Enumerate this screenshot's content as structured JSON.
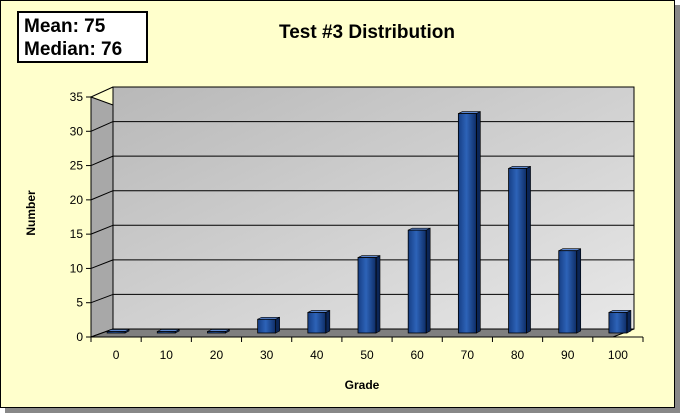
{
  "stats": {
    "mean": "Mean: 75",
    "median": "Median: 76"
  },
  "colors": {
    "background": "#ffffcc",
    "bar": "#1f4e9c",
    "wall": "#c9c9c9",
    "floor": "#8c8c8c"
  },
  "chart_data": {
    "type": "bar",
    "title": "Test #3 Distribution",
    "xlabel": "Grade",
    "ylabel": "Number",
    "categories": [
      "0",
      "10",
      "20",
      "30",
      "40",
      "50",
      "60",
      "70",
      "80",
      "90",
      "100"
    ],
    "values": [
      0,
      0,
      0,
      2,
      3,
      11,
      15,
      32,
      24,
      12,
      3
    ],
    "ylim": [
      0,
      35
    ],
    "yticks": [
      "0",
      "5",
      "10",
      "15",
      "20",
      "25",
      "30",
      "35"
    ],
    "grid": true,
    "legend": "none"
  }
}
